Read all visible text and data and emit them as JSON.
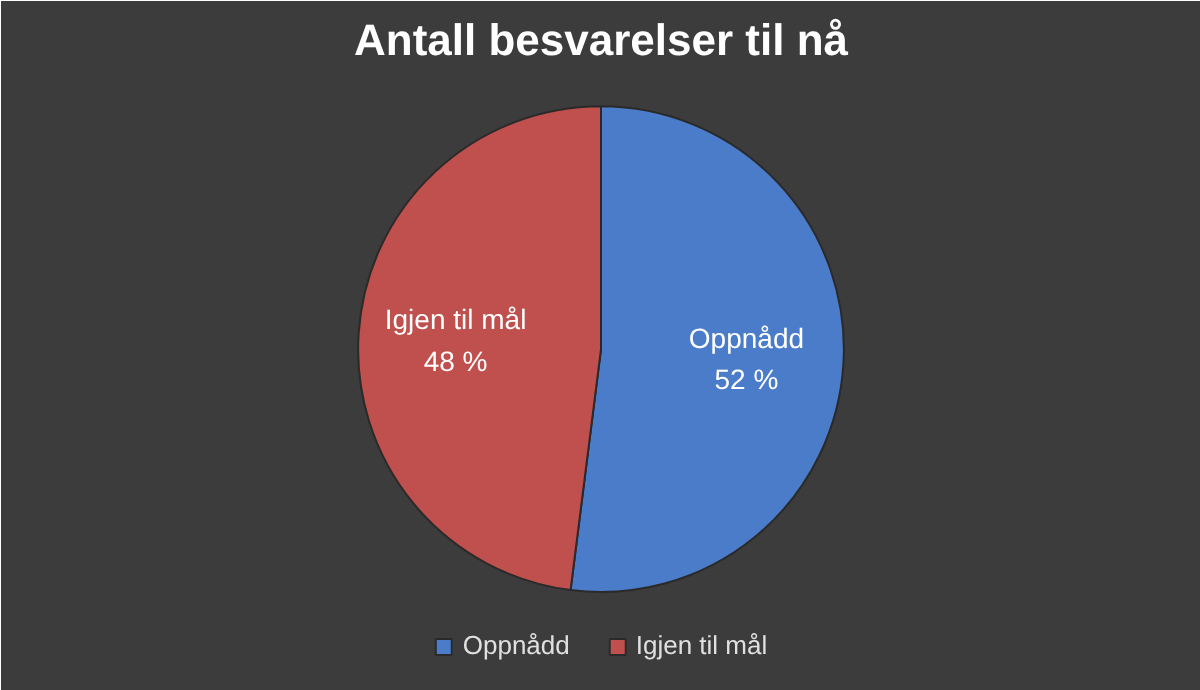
{
  "chart_data": {
    "type": "pie",
    "title": "Antall besvarelser til nå",
    "categories": [
      "Oppnådd",
      "Igjen til mål"
    ],
    "values": [
      52,
      48
    ],
    "colors": [
      "#4a7cc9",
      "#c0504d"
    ],
    "value_labels": [
      "52 %",
      "48 %"
    ],
    "legend": "bottom"
  }
}
